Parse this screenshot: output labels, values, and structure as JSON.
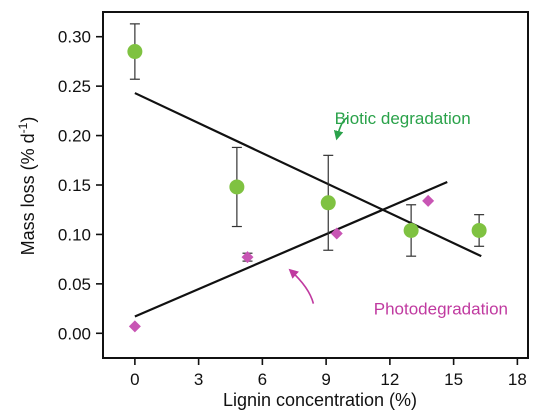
{
  "chart_data": {
    "type": "scatter",
    "xlabel": "Lignin concentration (%)",
    "ylabel": "Mass loss (% d",
    "ylabel_sup": "-1",
    "ylabel_close": ")",
    "xlim": [
      -1.5,
      18.5
    ],
    "ylim": [
      -0.025,
      0.325
    ],
    "x_ticks": [
      0,
      3,
      6,
      9,
      12,
      15,
      18
    ],
    "x_tick_labels": [
      "0",
      "3",
      "6",
      "9",
      "12",
      "15",
      "18"
    ],
    "y_ticks": [
      0.0,
      0.05,
      0.1,
      0.15,
      0.2,
      0.25,
      0.3
    ],
    "y_tick_labels": [
      "0.00",
      "0.05",
      "0.10",
      "0.15",
      "0.20",
      "0.25",
      "0.30"
    ],
    "grid": false,
    "series": [
      {
        "name": "Biotic degradation",
        "marker": "circle",
        "color": "#7fc241",
        "label_color": "#2aa24a",
        "points": [
          {
            "x": 0.0,
            "y": 0.285,
            "err": 0.028
          },
          {
            "x": 4.8,
            "y": 0.148,
            "err": 0.04
          },
          {
            "x": 9.1,
            "y": 0.132,
            "err": 0.048
          },
          {
            "x": 13.0,
            "y": 0.104,
            "err": 0.026
          },
          {
            "x": 16.2,
            "y": 0.104,
            "err": 0.016
          }
        ],
        "fit": [
          {
            "x": 0.0,
            "y": 0.243
          },
          {
            "x": 16.3,
            "y": 0.078
          }
        ]
      },
      {
        "name": "Photodegradation",
        "marker": "diamond",
        "color": "#c855b4",
        "label_color": "#c03aa0",
        "points": [
          {
            "x": 0.0,
            "y": 0.007,
            "err": null
          },
          {
            "x": 5.3,
            "y": 0.077,
            "err": 0.004
          },
          {
            "x": 9.5,
            "y": 0.101,
            "err": null
          },
          {
            "x": 13.8,
            "y": 0.134,
            "err": null
          }
        ],
        "fit": [
          {
            "x": 0.0,
            "y": 0.017
          },
          {
            "x": 14.7,
            "y": 0.153
          }
        ]
      }
    ],
    "annotations": [
      {
        "text": "Biotic degradation",
        "color": "#2aa24a",
        "text_at": {
          "x": 12.6,
          "y": 0.218
        },
        "arrow_from": {
          "x": 10.0,
          "y": 0.218
        },
        "arrow_to": {
          "x": 9.5,
          "y": 0.197
        }
      },
      {
        "text": "Photodegradation",
        "color": "#c03aa0",
        "text_at": {
          "x": 14.4,
          "y": 0.025
        },
        "arrow_from": {
          "x": 8.4,
          "y": 0.03
        },
        "arrow_to": {
          "x": 7.3,
          "y": 0.064
        }
      }
    ]
  }
}
